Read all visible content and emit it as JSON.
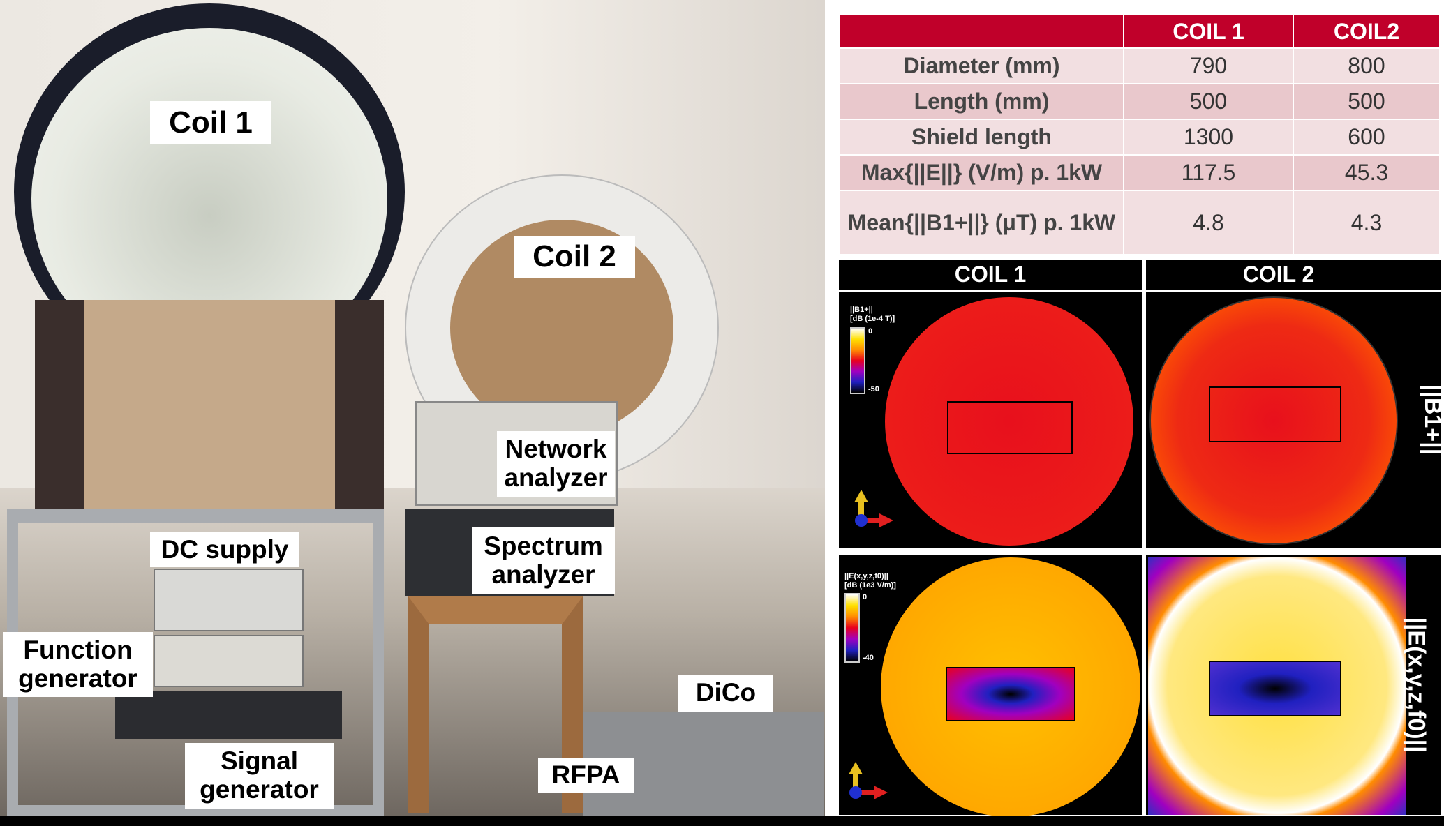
{
  "photo_labels": {
    "coil1": "Coil 1",
    "coil2": "Coil 2",
    "network_analyzer": "Network analyzer",
    "spectrum_analyzer": "Spectrum analyzer",
    "dc_supply": "DC supply",
    "function_generator": "Function generator",
    "signal_generator": "Signal generator",
    "dico": "DiCo",
    "rfpa": "RFPA"
  },
  "table": {
    "headers": [
      "",
      "COIL 1",
      "COIL2"
    ],
    "rows": [
      {
        "label": "Diameter (mm)",
        "coil1": "790",
        "coil2": "800"
      },
      {
        "label": "Length (mm)",
        "coil1": "500",
        "coil2": "500"
      },
      {
        "label": "Shield length",
        "coil1": "1300",
        "coil2": "600"
      },
      {
        "label": "Max{||E||} (V/m) p. 1kW",
        "coil1": "117.5",
        "coil2": "45.3"
      },
      {
        "label": "Mean{||B1+||} (μT) p. 1kW",
        "coil1": "4.8",
        "coil2": "4.3"
      }
    ],
    "header_color": "#c0002a"
  },
  "maps": {
    "col1": "COIL 1",
    "col2": "COIL 2",
    "b1_row_label": "||B1+||",
    "e_row_label": "||E(x,y,z,f0)||",
    "b1_colorbar": {
      "title": "||B1+||",
      "unit": "[dB (1e-4 T)]",
      "max": "0",
      "min": "-50"
    },
    "e_colorbar": {
      "title": "||E(x,y,z,f0)||",
      "unit": "[dB (1e3 V/m)]",
      "max": "0",
      "min": "-40"
    },
    "colormap": [
      "#000000",
      "#2020c0",
      "#a000c0",
      "#e8001e",
      "#ff8c00",
      "#ffe000",
      "#ffffff"
    ]
  }
}
